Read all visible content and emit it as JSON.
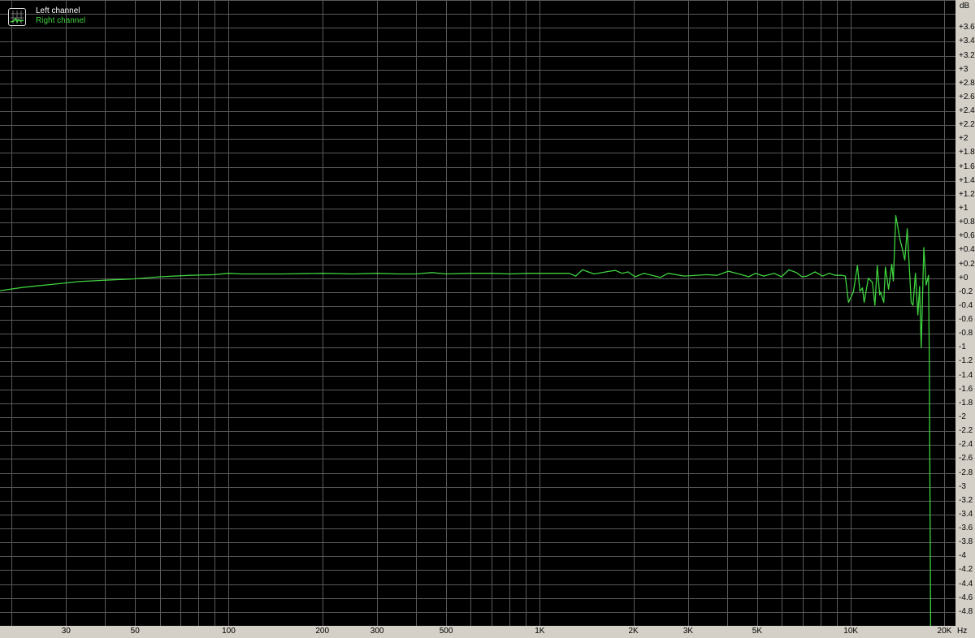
{
  "chart_data": {
    "type": "line",
    "title": "",
    "xlabel": "",
    "ylabel": "",
    "x_unit": "Hz",
    "y_unit": "dB",
    "x_scale": "log",
    "xlim": [
      18.4,
      21700
    ],
    "ylim": [
      -5.0,
      4.0
    ],
    "grid": true,
    "background": "#000000",
    "grid_color": "#5a5a5a",
    "legend_placement": "top-left",
    "legend": [
      {
        "name": "Left channel",
        "color": "#ffffff"
      },
      {
        "name": "Right channel",
        "color": "#3fd23f"
      }
    ],
    "x_gridlines": [
      20,
      30,
      40,
      50,
      60,
      70,
      80,
      90,
      100,
      200,
      300,
      400,
      500,
      600,
      700,
      800,
      900,
      1000,
      2000,
      3000,
      4000,
      5000,
      6000,
      7000,
      8000,
      9000,
      10000,
      20000
    ],
    "x_ticks": [
      {
        "value": 30,
        "label": "30"
      },
      {
        "value": 50,
        "label": "50"
      },
      {
        "value": 100,
        "label": "100"
      },
      {
        "value": 200,
        "label": "200"
      },
      {
        "value": 300,
        "label": "300"
      },
      {
        "value": 500,
        "label": "500"
      },
      {
        "value": 1000,
        "label": "1K"
      },
      {
        "value": 2000,
        "label": "2K"
      },
      {
        "value": 3000,
        "label": "3K"
      },
      {
        "value": 5000,
        "label": "5K"
      },
      {
        "value": 10000,
        "label": "10K"
      },
      {
        "value": 20000,
        "label": "20K"
      }
    ],
    "y_ticks": [
      {
        "value": 3.6,
        "label": "+3.6"
      },
      {
        "value": 3.4,
        "label": "+3.4"
      },
      {
        "value": 3.2,
        "label": "+3.2"
      },
      {
        "value": 3.0,
        "label": "+3"
      },
      {
        "value": 2.8,
        "label": "+2.8"
      },
      {
        "value": 2.6,
        "label": "+2.6"
      },
      {
        "value": 2.4,
        "label": "+2.4"
      },
      {
        "value": 2.2,
        "label": "+2.2"
      },
      {
        "value": 2.0,
        "label": "+2"
      },
      {
        "value": 1.8,
        "label": "+1.8"
      },
      {
        "value": 1.6,
        "label": "+1.6"
      },
      {
        "value": 1.4,
        "label": "+1.4"
      },
      {
        "value": 1.2,
        "label": "+1.2"
      },
      {
        "value": 1.0,
        "label": "+1"
      },
      {
        "value": 0.8,
        "label": "+0.8"
      },
      {
        "value": 0.6,
        "label": "+0.6"
      },
      {
        "value": 0.4,
        "label": "+0.4"
      },
      {
        "value": 0.2,
        "label": "+0.2"
      },
      {
        "value": 0.0,
        "label": "+0"
      },
      {
        "value": -0.2,
        "label": "-0.2"
      },
      {
        "value": -0.4,
        "label": "-0.4"
      },
      {
        "value": -0.6,
        "label": "-0.6"
      },
      {
        "value": -0.8,
        "label": "-0.8"
      },
      {
        "value": -1.0,
        "label": "-1"
      },
      {
        "value": -1.2,
        "label": "-1.2"
      },
      {
        "value": -1.4,
        "label": "-1.4"
      },
      {
        "value": -1.6,
        "label": "-1.6"
      },
      {
        "value": -1.8,
        "label": "-1.8"
      },
      {
        "value": -2.0,
        "label": "-2"
      },
      {
        "value": -2.2,
        "label": "-2.2"
      },
      {
        "value": -2.4,
        "label": "-2.4"
      },
      {
        "value": -2.6,
        "label": "-2.6"
      },
      {
        "value": -2.8,
        "label": "-2.8"
      },
      {
        "value": -3.0,
        "label": "-3"
      },
      {
        "value": -3.2,
        "label": "-3.2"
      },
      {
        "value": -3.4,
        "label": "-3.4"
      },
      {
        "value": -3.6,
        "label": "-3.6"
      },
      {
        "value": -3.8,
        "label": "-3.8"
      },
      {
        "value": -4.0,
        "label": "-4"
      },
      {
        "value": -4.2,
        "label": "-4.2"
      },
      {
        "value": -4.4,
        "label": "-4.4"
      },
      {
        "value": -4.6,
        "label": "-4.6"
      },
      {
        "value": -4.8,
        "label": "-4.8"
      }
    ],
    "series": [
      {
        "name": "Right channel",
        "color": "#3fd23f",
        "points": [
          [
            18.4,
            -0.18
          ],
          [
            22,
            -0.13
          ],
          [
            27,
            -0.09
          ],
          [
            33,
            -0.05
          ],
          [
            40,
            -0.03
          ],
          [
            50,
            -0.01
          ],
          [
            60,
            0.02
          ],
          [
            75,
            0.04
          ],
          [
            90,
            0.05
          ],
          [
            100,
            0.07
          ],
          [
            110,
            0.06
          ],
          [
            150,
            0.06
          ],
          [
            200,
            0.07
          ],
          [
            250,
            0.06
          ],
          [
            300,
            0.07
          ],
          [
            350,
            0.06
          ],
          [
            400,
            0.06
          ],
          [
            450,
            0.08
          ],
          [
            500,
            0.06
          ],
          [
            600,
            0.07
          ],
          [
            700,
            0.07
          ],
          [
            800,
            0.06
          ],
          [
            917,
            0.07
          ],
          [
            1242,
            0.07
          ],
          [
            1305,
            0.03
          ],
          [
            1372,
            0.12
          ],
          [
            1494,
            0.06
          ],
          [
            1679,
            0.1
          ],
          [
            1750,
            0.11
          ],
          [
            1836,
            0.07
          ],
          [
            1923,
            0.09
          ],
          [
            2024,
            0.02
          ],
          [
            2163,
            0.07
          ],
          [
            2438,
            0.01
          ],
          [
            2588,
            0.07
          ],
          [
            2918,
            0.03
          ],
          [
            3432,
            0.05
          ],
          [
            3716,
            0.04
          ],
          [
            4040,
            0.1
          ],
          [
            4450,
            0.05
          ],
          [
            4700,
            0.02
          ],
          [
            4936,
            0.07
          ],
          [
            5245,
            0.03
          ],
          [
            5670,
            0.07
          ],
          [
            5985,
            0.02
          ],
          [
            6320,
            0.12
          ],
          [
            6680,
            0.08
          ],
          [
            6970,
            0.02
          ],
          [
            7230,
            0.03
          ],
          [
            7670,
            0.09
          ],
          [
            8110,
            0.03
          ],
          [
            8520,
            0.07
          ],
          [
            8920,
            0.04
          ],
          [
            9360,
            0.04
          ],
          [
            9600,
            0.03
          ],
          [
            9830,
            -0.35
          ],
          [
            10190,
            -0.2
          ],
          [
            10500,
            0.18
          ],
          [
            10700,
            -0.19
          ],
          [
            10900,
            -0.14
          ],
          [
            11040,
            -0.35
          ],
          [
            11380,
            0.0
          ],
          [
            11730,
            -0.06
          ],
          [
            11950,
            -0.39
          ],
          [
            12160,
            0.18
          ],
          [
            12380,
            -0.24
          ],
          [
            12460,
            -0.2
          ],
          [
            12760,
            -0.35
          ],
          [
            12910,
            0.16
          ],
          [
            13220,
            -0.16
          ],
          [
            13540,
            0.2
          ],
          [
            13700,
            -0.04
          ],
          [
            13950,
            0.9
          ],
          [
            14380,
            0.56
          ],
          [
            14640,
            0.42
          ],
          [
            14910,
            0.26
          ],
          [
            15180,
            0.71
          ],
          [
            15640,
            -0.35
          ],
          [
            15840,
            -0.39
          ],
          [
            16130,
            0.07
          ],
          [
            16430,
            -0.53
          ],
          [
            16630,
            -0.12
          ],
          [
            16840,
            -1.0
          ],
          [
            17160,
            0.44
          ],
          [
            17460,
            -0.1
          ],
          [
            17770,
            0.04
          ],
          [
            17880,
            -1.2
          ],
          [
            18100,
            -6.0
          ]
        ]
      }
    ]
  }
}
